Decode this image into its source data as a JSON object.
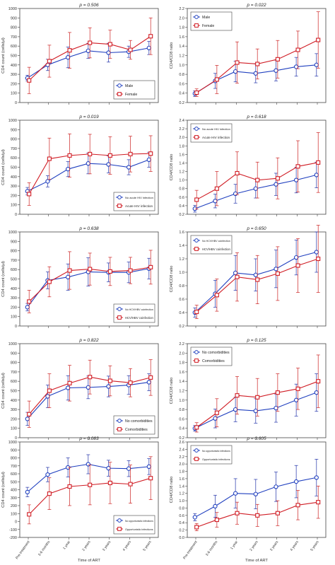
{
  "x_axis_label": "Time of ART",
  "x_categories": [
    "Pre-treatment",
    "3-6 months",
    "1 year",
    "2 years",
    "3 years",
    "4 years",
    "5 years"
  ],
  "colors": {
    "blue": "#1f3fbf",
    "red": "#d01c24",
    "blue_err": "#2233aa",
    "red_err": "#cc2222"
  },
  "chart_data": [
    {
      "type": "line",
      "title": "p = 0.506",
      "ylabel": "CD4 count (cells/µl)",
      "ylim": [
        0,
        1000
      ],
      "yticks": [
        0,
        100,
        200,
        300,
        400,
        500,
        600,
        700,
        800,
        900,
        1000
      ],
      "legend_position": "bottom-right",
      "grid": false,
      "series": [
        {
          "name": "Male",
          "marker": "circle",
          "color": "blue",
          "values": [
            260,
            400,
            480,
            550,
            530,
            540,
            580
          ],
          "errors": [
            30,
            60,
            110,
            80,
            100,
            60,
            70
          ]
        },
        {
          "name": "Female",
          "marker": "square",
          "color": "red",
          "values": [
            235,
            440,
            555,
            635,
            620,
            560,
            705
          ],
          "errors": [
            140,
            170,
            190,
            160,
            150,
            100,
            195
          ]
        }
      ]
    },
    {
      "type": "line",
      "title": "p = 0.022",
      "ylabel": "CD4/CD8 ratio",
      "ylim": [
        0.2,
        2.2
      ],
      "yticks": [
        0.2,
        0.4,
        0.6,
        0.8,
        1.0,
        1.2,
        1.4,
        1.6,
        1.8,
        2.0,
        2.2
      ],
      "legend_position": "top-left",
      "grid": false,
      "series": [
        {
          "name": "Male",
          "marker": "circle",
          "color": "blue",
          "values": [
            0.39,
            0.66,
            0.86,
            0.82,
            0.88,
            0.96,
            1.0
          ],
          "errors": [
            0.06,
            0.16,
            0.22,
            0.2,
            0.22,
            0.2,
            0.24
          ]
        },
        {
          "name": "Female",
          "marker": "square",
          "color": "red",
          "values": [
            0.41,
            0.69,
            1.05,
            1.02,
            1.12,
            1.32,
            1.53
          ],
          "errors": [
            0.08,
            0.3,
            0.44,
            0.32,
            0.4,
            0.4,
            0.6
          ]
        }
      ]
    },
    {
      "type": "line",
      "title": "p = 0.019",
      "ylabel": "CD4 count (cells/µl)",
      "ylim": [
        0,
        1000
      ],
      "yticks": [
        0,
        100,
        200,
        300,
        400,
        500,
        600,
        700,
        800,
        900,
        1000
      ],
      "legend_position": "bottom-right",
      "grid": false,
      "series": [
        {
          "name": "No acute HIV infection",
          "marker": "circle",
          "color": "blue",
          "values": [
            245,
            350,
            480,
            540,
            530,
            500,
            580
          ],
          "errors": [
            40,
            60,
            80,
            110,
            90,
            80,
            80
          ]
        },
        {
          "name": "Acute HIV infection",
          "marker": "square",
          "color": "red",
          "values": [
            215,
            590,
            625,
            640,
            625,
            640,
            645
          ],
          "errors": [
            120,
            220,
            230,
            210,
            200,
            190,
            190
          ]
        }
      ]
    },
    {
      "type": "line",
      "title": "p = 0.618",
      "ylabel": "CD4/CD8 ratio",
      "ylim": [
        0.2,
        2.4
      ],
      "yticks": [
        0.2,
        0.4,
        0.6,
        0.8,
        1.0,
        1.2,
        1.4,
        1.6,
        1.8,
        2.0,
        2.2,
        2.4
      ],
      "legend_position": "top-left",
      "grid": false,
      "series": [
        {
          "name": "No acute HIV infection",
          "marker": "circle",
          "color": "blue",
          "values": [
            0.33,
            0.51,
            0.68,
            0.8,
            0.9,
            1.0,
            1.12
          ],
          "errors": [
            0.08,
            0.16,
            0.22,
            0.22,
            0.26,
            0.3,
            0.3
          ]
        },
        {
          "name": "Acute HIV infection",
          "marker": "square",
          "color": "red",
          "values": [
            0.54,
            0.8,
            1.16,
            1.0,
            1.04,
            1.32,
            1.41
          ],
          "errors": [
            0.22,
            0.4,
            0.5,
            0.42,
            0.48,
            0.6,
            0.7
          ]
        }
      ]
    },
    {
      "type": "line",
      "title": "p = 0.638",
      "ylabel": "CD4 count (cells/µl)",
      "ylim": [
        0,
        1000
      ],
      "yticks": [
        0,
        100,
        200,
        300,
        400,
        500,
        600,
        700,
        800,
        900,
        1000
      ],
      "legend_position": "bottom-right",
      "grid": false,
      "series": [
        {
          "name": "No HCV/HBV coinfection",
          "marker": "circle",
          "color": "blue",
          "values": [
            200,
            485,
            520,
            575,
            570,
            570,
            610
          ],
          "errors": [
            40,
            90,
            140,
            150,
            100,
            110,
            110
          ]
        },
        {
          "name": "HCV/HBV coinfection",
          "marker": "square",
          "color": "red",
          "values": [
            260,
            470,
            590,
            605,
            580,
            590,
            625
          ],
          "errors": [
            120,
            160,
            200,
            170,
            150,
            140,
            180
          ]
        }
      ]
    },
    {
      "type": "line",
      "title": "p = 0.650",
      "ylabel": "CD4/CD8 ratio",
      "ylim": [
        0.2,
        1.6
      ],
      "yticks": [
        0.2,
        0.4,
        0.6,
        0.8,
        1.0,
        1.2,
        1.4,
        1.6
      ],
      "legend_position": "top-left",
      "grid": false,
      "series": [
        {
          "name": "No HCV/HBV coinfection",
          "marker": "circle",
          "color": "blue",
          "values": [
            0.4,
            0.68,
            0.99,
            0.96,
            1.05,
            1.22,
            1.3
          ],
          "errors": [
            0.07,
            0.2,
            0.26,
            0.24,
            0.28,
            0.26,
            0.3
          ]
        },
        {
          "name": "HCV/HBV coinfection",
          "marker": "square",
          "color": "red",
          "values": [
            0.41,
            0.66,
            0.93,
            0.89,
            0.98,
            1.1,
            1.2
          ],
          "errors": [
            0.1,
            0.24,
            0.36,
            0.36,
            0.4,
            0.4,
            0.5
          ]
        }
      ]
    },
    {
      "type": "line",
      "title": "p = 0.822",
      "ylabel": "CD4 count (cells/µl)",
      "ylim": [
        0,
        1000
      ],
      "yticks": [
        0,
        100,
        200,
        300,
        400,
        500,
        600,
        700,
        800,
        900,
        1000
      ],
      "legend_position": "bottom-right",
      "grid": false,
      "series": [
        {
          "name": "No comorbidities",
          "marker": "circle",
          "color": "blue",
          "values": [
            200,
            440,
            530,
            535,
            545,
            560,
            590
          ],
          "errors": [
            70,
            120,
            130,
            120,
            110,
            100,
            90
          ]
        },
        {
          "name": "Comorbidities",
          "marker": "square",
          "color": "red",
          "values": [
            250,
            500,
            580,
            645,
            605,
            585,
            640
          ],
          "errors": [
            140,
            180,
            190,
            180,
            160,
            150,
            190
          ]
        }
      ]
    },
    {
      "type": "line",
      "title": "p = 0.125",
      "ylabel": "CD4/CD8 ratio",
      "ylim": [
        0.2,
        2.2
      ],
      "yticks": [
        0.2,
        0.4,
        0.6,
        0.8,
        1.0,
        1.2,
        1.4,
        1.6,
        1.8,
        2.0,
        2.2
      ],
      "legend_position": "top-left",
      "grid": false,
      "series": [
        {
          "name": "No comorbidities",
          "marker": "circle",
          "color": "blue",
          "values": [
            0.4,
            0.61,
            0.8,
            0.77,
            0.83,
            1.0,
            1.16
          ],
          "errors": [
            0.06,
            0.2,
            0.26,
            0.26,
            0.3,
            0.34,
            0.4
          ]
        },
        {
          "name": "Comorbidities",
          "marker": "square",
          "color": "red",
          "values": [
            0.42,
            0.73,
            1.1,
            1.06,
            1.16,
            1.24,
            1.4
          ],
          "errors": [
            0.1,
            0.3,
            0.4,
            0.4,
            0.4,
            0.44,
            0.56
          ]
        }
      ]
    },
    {
      "type": "line",
      "title": "p = 0.083",
      "ylabel": "CD4 count (cells/µl)",
      "ylim": [
        -200,
        1000
      ],
      "yticks": [
        -200,
        -100,
        0,
        100,
        200,
        300,
        400,
        500,
        600,
        700,
        800,
        900,
        1000
      ],
      "legend_position": "bottom-right",
      "grid": false,
      "series": [
        {
          "name": "No opportunistic infections",
          "marker": "circle",
          "color": "blue",
          "values": [
            370,
            590,
            680,
            720,
            670,
            665,
            690
          ],
          "errors": [
            60,
            90,
            120,
            120,
            100,
            100,
            100
          ]
        },
        {
          "name": "Opportunistic infections",
          "marker": "square",
          "color": "red",
          "values": [
            90,
            350,
            440,
            460,
            485,
            470,
            545
          ],
          "errors": [
            120,
            200,
            240,
            250,
            260,
            240,
            270
          ]
        }
      ]
    },
    {
      "type": "line",
      "title": "p = 0.605",
      "ylabel": "CD4/CD8 ratio",
      "ylim": [
        0,
        2.6
      ],
      "yticks": [
        0,
        0.2,
        0.4,
        0.6,
        0.8,
        1.0,
        1.2,
        1.4,
        1.6,
        1.8,
        2.0,
        2.2,
        2.4,
        2.6
      ],
      "legend_position": "top-left",
      "grid": false,
      "series": [
        {
          "name": "No opportunistic infections",
          "marker": "circle",
          "color": "blue",
          "values": [
            0.55,
            0.85,
            1.2,
            1.18,
            1.38,
            1.52,
            1.63
          ],
          "errors": [
            0.1,
            0.3,
            0.4,
            0.4,
            0.4,
            0.44,
            0.5
          ]
        },
        {
          "name": "Opportunistic infections",
          "marker": "square",
          "color": "red",
          "values": [
            0.28,
            0.48,
            0.66,
            0.6,
            0.66,
            0.88,
            0.96
          ],
          "errors": [
            0.1,
            0.2,
            0.3,
            0.3,
            0.34,
            0.4,
            0.44
          ]
        }
      ]
    }
  ]
}
